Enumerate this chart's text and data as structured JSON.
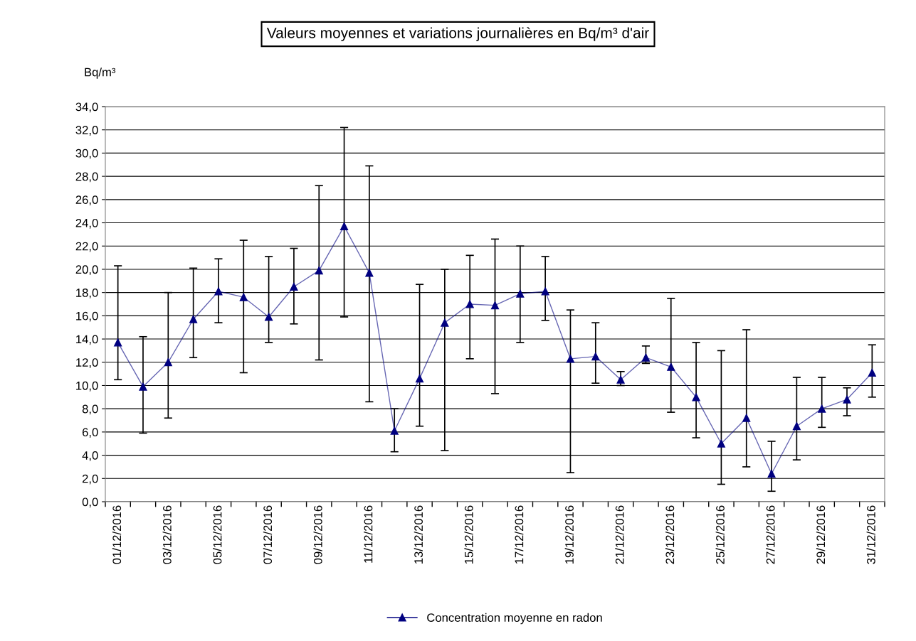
{
  "chart_data": {
    "type": "line",
    "title": "Valeurs moyennes et variations journalières en Bq/m³ d'air",
    "ylabel": "Bq/m³",
    "categories": [
      "01/12/2016",
      null,
      "03/12/2016",
      null,
      "05/12/2016",
      null,
      "07/12/2016",
      null,
      "09/12/2016",
      null,
      "11/12/2016",
      null,
      "13/12/2016",
      null,
      "15/12/2016",
      null,
      "17/12/2016",
      null,
      "19/12/2016",
      null,
      "21/12/2016",
      null,
      "23/12/2016",
      null,
      "25/12/2016",
      null,
      "27/12/2016",
      null,
      "29/12/2016",
      null,
      "31/12/2016"
    ],
    "series": [
      {
        "name": "Concentration moyenne en radon",
        "color": "#000080",
        "values": [
          13.7,
          9.9,
          12.0,
          15.7,
          18.1,
          17.6,
          15.9,
          18.5,
          19.9,
          23.7,
          19.7,
          6.1,
          10.6,
          15.4,
          17.0,
          16.9,
          17.9,
          18.1,
          12.3,
          12.5,
          10.5,
          12.4,
          11.6,
          9.0,
          5.0,
          7.2,
          2.4,
          6.5,
          8.0,
          8.8,
          11.1
        ],
        "errors": [
          [
            10.5,
            20.3
          ],
          [
            5.9,
            14.2
          ],
          [
            7.2,
            18.0
          ],
          [
            12.4,
            20.1
          ],
          [
            15.4,
            20.9
          ],
          [
            11.1,
            22.5
          ],
          [
            13.7,
            21.1
          ],
          [
            15.3,
            21.8
          ],
          [
            12.2,
            27.2
          ],
          [
            15.9,
            32.2
          ],
          [
            8.6,
            28.9
          ],
          [
            4.3,
            8.0
          ],
          [
            6.5,
            18.7
          ],
          [
            4.4,
            20.0
          ],
          [
            12.3,
            21.2
          ],
          [
            9.3,
            22.6
          ],
          [
            13.7,
            22.0
          ],
          [
            15.6,
            21.1
          ],
          [
            2.5,
            16.5
          ],
          [
            10.2,
            15.4
          ],
          [
            10.0,
            11.2
          ],
          [
            11.9,
            13.4
          ],
          [
            7.7,
            17.5
          ],
          [
            5.5,
            13.7
          ],
          [
            1.5,
            13.0
          ],
          [
            3.0,
            14.8
          ],
          [
            0.9,
            5.2
          ],
          [
            3.6,
            10.7
          ],
          [
            6.4,
            10.7
          ],
          [
            7.4,
            9.8
          ],
          [
            9.0,
            13.5
          ]
        ]
      }
    ],
    "ylim": [
      0,
      34
    ],
    "yticks": [
      {
        "value": 0,
        "label": "0,0"
      },
      {
        "value": 2,
        "label": "2,0"
      },
      {
        "value": 4,
        "label": "4,0"
      },
      {
        "value": 6,
        "label": "6,0"
      },
      {
        "value": 8,
        "label": "8,0"
      },
      {
        "value": 10,
        "label": "10,0"
      },
      {
        "value": 12,
        "label": "12,0"
      },
      {
        "value": 14,
        "label": "14,0"
      },
      {
        "value": 16,
        "label": "16,0"
      },
      {
        "value": 18,
        "label": "18,0"
      },
      {
        "value": 20,
        "label": "20,0"
      },
      {
        "value": 22,
        "label": "22,0"
      },
      {
        "value": 24,
        "label": "24,0"
      },
      {
        "value": 26,
        "label": "26,0"
      },
      {
        "value": 28,
        "label": "28,0"
      },
      {
        "value": 30,
        "label": "30,0"
      },
      {
        "value": 32,
        "label": "32,0"
      },
      {
        "value": 34,
        "label": "34,0"
      }
    ],
    "grid": "y",
    "legend": "bottom",
    "marker": "triangle",
    "line_style": "solid"
  }
}
